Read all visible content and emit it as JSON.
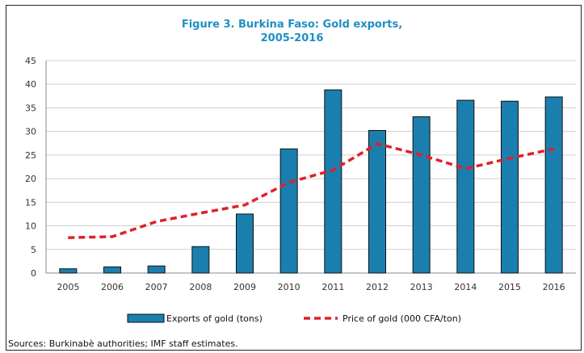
{
  "chart_data": {
    "type": "bar",
    "title_line1": "Figure 3. Burkina Faso: Gold exports,",
    "title_line2": "2005-2016",
    "categories": [
      "2005",
      "2006",
      "2007",
      "2008",
      "2009",
      "2010",
      "2011",
      "2012",
      "2013",
      "2014",
      "2015",
      "2016"
    ],
    "series": [
      {
        "name": "Exports of gold (tons)",
        "type": "bar",
        "color": "#1a7fae",
        "values": [
          0.9,
          1.3,
          1.5,
          5.6,
          12.5,
          26.3,
          38.8,
          30.2,
          33.1,
          36.6,
          36.4,
          37.3
        ]
      },
      {
        "name": "Price of gold (000 CFA/ton)",
        "type": "line",
        "style": "dashed",
        "color": "#e0202a",
        "values": [
          7.5,
          7.7,
          10.9,
          12.7,
          14.4,
          19.2,
          21.8,
          27.4,
          25.0,
          22.1,
          24.3,
          26.3
        ]
      }
    ],
    "ylim": [
      0,
      45
    ],
    "yticks": [
      "0",
      "5",
      "10",
      "15",
      "20",
      "25",
      "30",
      "35",
      "40",
      "45"
    ],
    "grid": true,
    "legend": "bottom"
  },
  "source": "Sources: Burkinabè authorities; IMF staff estimates."
}
